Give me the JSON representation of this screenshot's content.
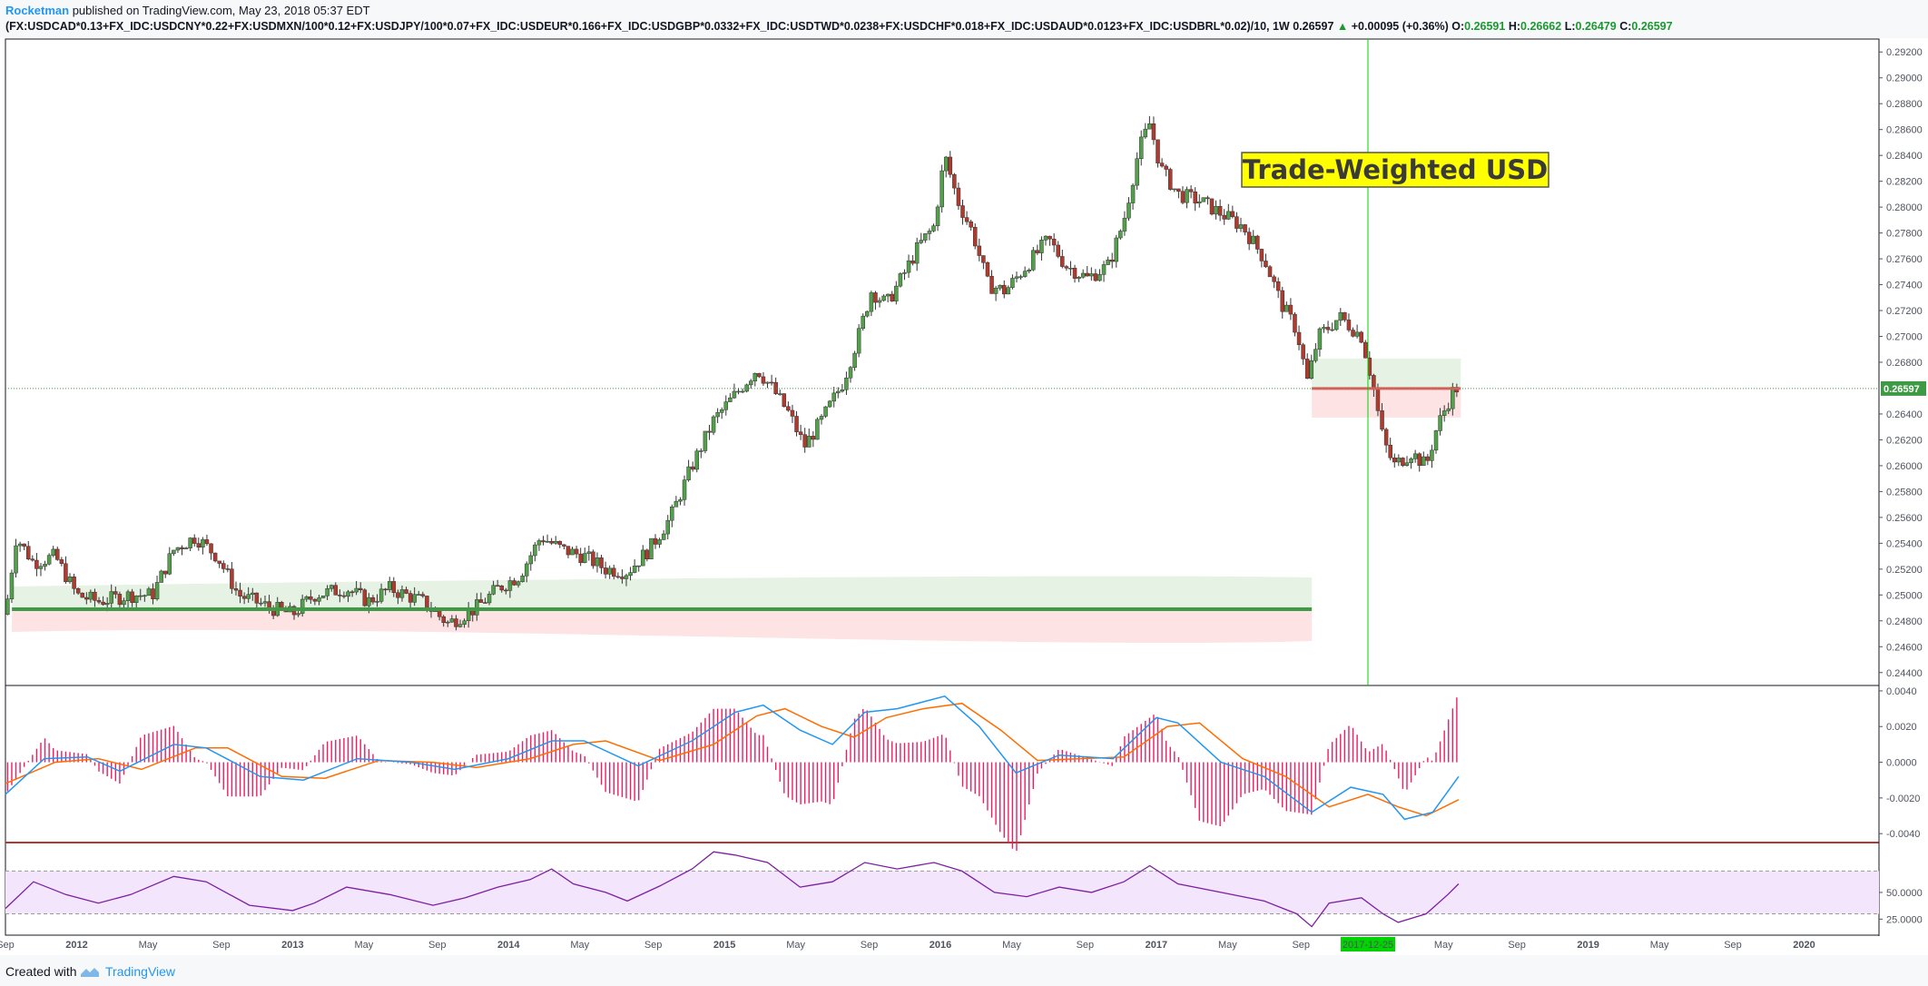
{
  "header": {
    "author": "Rocketman",
    "published": " published on TradingView.com, May 23, 2018 05:37 EDT",
    "symbol": "(FX:USDCAD*0.13+FX_IDC:USDCNY*0.22+FX:USDMXN/100*0.12+FX:USDJPY/100*0.07+FX_IDC:USDEUR*0.166+FX_IDC:USDGBP*0.0332+FX_IDC:USDTWD*0.0238+FX:USDCHF*0.018+FX_IDC:USDAUD*0.0123+FX_IDC:USDBRL*0.02)/10, 1W",
    "last": "0.26597",
    "change_arrow": "▲",
    "change": "+0.00095 (+0.36%)",
    "o_label": "O:",
    "o_value": "0.26591",
    "h_label": "H:",
    "h_value": "0.26662",
    "l_label": "L:",
    "l_value": "0.26479",
    "c_label": "C:",
    "c_value": "0.26597"
  },
  "footer": {
    "created_with": "Created with",
    "brand": "TradingView"
  },
  "colors": {
    "up": "#53a04b",
    "down": "#b03a2e",
    "green_line": "#3f9a46",
    "red_line": "#e15c5c",
    "macd": "#2196f3",
    "signal": "#ff6d00",
    "hist": "#e91e63",
    "rsi": "#7b1fa2",
    "rsi_band": "#f3e5fb",
    "title_bg": "#ffff00",
    "cursor": "#00d400"
  },
  "chart_data": [
    {
      "type": "candlestick",
      "title": "Trade-Weighted USD",
      "timeframe": "1W",
      "ylim": [
        0.243,
        0.293
      ],
      "y_ticks": [
        "0.24400",
        "0.24600",
        "0.24800",
        "0.25000",
        "0.25200",
        "0.25400",
        "0.25600",
        "0.25800",
        "0.26000",
        "0.26200",
        "0.26400",
        "0.26800",
        "0.27000",
        "0.27200",
        "0.27400",
        "0.27600",
        "0.27800",
        "0.28000",
        "0.28200",
        "0.28400",
        "0.28600",
        "0.28800",
        "0.29000",
        "0.29200"
      ],
      "last_price_label": "0.26597",
      "x_labels": [
        "Sep",
        "2012",
        "May",
        "Sep",
        "2013",
        "May",
        "Sep",
        "2014",
        "May",
        "Sep",
        "2015",
        "May",
        "Sep",
        "2016",
        "May",
        "Sep",
        "2017",
        "May",
        "Sep",
        "2017-12-25",
        "May",
        "Sep",
        "2019",
        "May",
        "Sep",
        "2020"
      ],
      "x_label_dates": [
        2011.67,
        2012.0,
        2012.33,
        2012.67,
        2013.0,
        2013.33,
        2013.67,
        2014.0,
        2014.33,
        2014.67,
        2015.0,
        2015.33,
        2015.67,
        2016.0,
        2016.33,
        2016.67,
        2017.0,
        2017.33,
        2017.67,
        2017.98,
        2018.33,
        2018.67,
        2019.0,
        2019.33,
        2019.67,
        2020.0
      ],
      "xlim": [
        2011.67,
        2020.33
      ],
      "price_path": [
        [
          2011.67,
          0.2485
        ],
        [
          2011.72,
          0.2545
        ],
        [
          2011.8,
          0.2525
        ],
        [
          2011.9,
          0.253
        ],
        [
          2012.0,
          0.25
        ],
        [
          2012.1,
          0.2495
        ],
        [
          2012.25,
          0.25
        ],
        [
          2012.35,
          0.25
        ],
        [
          2012.45,
          0.2535
        ],
        [
          2012.55,
          0.2545
        ],
        [
          2012.65,
          0.253
        ],
        [
          2012.75,
          0.25
        ],
        [
          2012.9,
          0.249
        ],
        [
          2013.0,
          0.2485
        ],
        [
          2013.1,
          0.25
        ],
        [
          2013.25,
          0.2505
        ],
        [
          2013.35,
          0.2495
        ],
        [
          2013.45,
          0.2505
        ],
        [
          2013.6,
          0.2495
        ],
        [
          2013.72,
          0.2478
        ],
        [
          2013.85,
          0.249
        ],
        [
          2013.95,
          0.2505
        ],
        [
          2014.05,
          0.2515
        ],
        [
          2014.15,
          0.2545
        ],
        [
          2014.25,
          0.2535
        ],
        [
          2014.35,
          0.253
        ],
        [
          2014.45,
          0.252
        ],
        [
          2014.55,
          0.2518
        ],
        [
          2014.65,
          0.2535
        ],
        [
          2014.75,
          0.256
        ],
        [
          2014.85,
          0.26
        ],
        [
          2014.95,
          0.2635
        ],
        [
          2015.05,
          0.2655
        ],
        [
          2015.15,
          0.2675
        ],
        [
          2015.22,
          0.266
        ],
        [
          2015.3,
          0.264
        ],
        [
          2015.37,
          0.2615
        ],
        [
          2015.45,
          0.2635
        ],
        [
          2015.55,
          0.2665
        ],
        [
          2015.62,
          0.27
        ],
        [
          2015.68,
          0.2735
        ],
        [
          2015.75,
          0.2725
        ],
        [
          2015.82,
          0.2745
        ],
        [
          2015.9,
          0.277
        ],
        [
          2015.97,
          0.2785
        ],
        [
          2016.02,
          0.284
        ],
        [
          2016.08,
          0.2805
        ],
        [
          2016.15,
          0.278
        ],
        [
          2016.22,
          0.274
        ],
        [
          2016.3,
          0.2735
        ],
        [
          2016.4,
          0.2755
        ],
        [
          2016.5,
          0.2775
        ],
        [
          2016.58,
          0.2755
        ],
        [
          2016.68,
          0.2745
        ],
        [
          2016.78,
          0.2755
        ],
        [
          2016.85,
          0.279
        ],
        [
          2016.92,
          0.2845
        ],
        [
          2016.97,
          0.2865
        ],
        [
          2017.02,
          0.283
        ],
        [
          2017.1,
          0.281
        ],
        [
          2017.2,
          0.2805
        ],
        [
          2017.3,
          0.2795
        ],
        [
          2017.4,
          0.2785
        ],
        [
          2017.5,
          0.276
        ],
        [
          2017.58,
          0.2725
        ],
        [
          2017.65,
          0.2705
        ],
        [
          2017.7,
          0.2665
        ],
        [
          2017.75,
          0.27
        ],
        [
          2017.85,
          0.2715
        ],
        [
          2017.95,
          0.27
        ],
        [
          2018.0,
          0.2665
        ],
        [
          2018.05,
          0.262
        ],
        [
          2018.1,
          0.26
        ],
        [
          2018.18,
          0.261
        ],
        [
          2018.25,
          0.26
        ],
        [
          2018.3,
          0.263
        ],
        [
          2018.38,
          0.266
        ]
      ],
      "annotations": {
        "support_line_y": 0.2489,
        "support_line_x": [
          2011.7,
          2017.72
        ],
        "resistance_line_y": 0.26597,
        "resistance_line_x": [
          2017.72,
          2018.41
        ],
        "vertical_cursor_date": "2017-12-25"
      }
    },
    {
      "type": "line",
      "name": "MACD",
      "ylim": [
        -0.0045,
        0.0042
      ],
      "y_ticks": [
        "0.0040",
        "0.0020",
        "0.0000",
        "-0.0020",
        "-0.0040"
      ],
      "macd_path": [
        [
          2011.67,
          -0.0018
        ],
        [
          2011.85,
          0.0002
        ],
        [
          2012.05,
          0.0003
        ],
        [
          2012.2,
          -0.0005
        ],
        [
          2012.45,
          0.001
        ],
        [
          2012.6,
          0.0008
        ],
        [
          2012.85,
          -0.0008
        ],
        [
          2013.05,
          -0.001
        ],
        [
          2013.3,
          0.0002
        ],
        [
          2013.55,
          0.0
        ],
        [
          2013.75,
          -0.0004
        ],
        [
          2014.0,
          0.0002
        ],
        [
          2014.2,
          0.0012
        ],
        [
          2014.35,
          0.0012
        ],
        [
          2014.6,
          -0.0002
        ],
        [
          2014.85,
          0.0012
        ],
        [
          2015.05,
          0.0028
        ],
        [
          2015.18,
          0.0032
        ],
        [
          2015.35,
          0.0018
        ],
        [
          2015.5,
          0.001
        ],
        [
          2015.65,
          0.0028
        ],
        [
          2015.8,
          0.003
        ],
        [
          2016.02,
          0.0037
        ],
        [
          2016.18,
          0.002
        ],
        [
          2016.35,
          -0.0006
        ],
        [
          2016.55,
          0.0004
        ],
        [
          2016.8,
          0.0002
        ],
        [
          2017.0,
          0.0025
        ],
        [
          2017.1,
          0.0022
        ],
        [
          2017.3,
          0.0
        ],
        [
          2017.5,
          -0.0008
        ],
        [
          2017.72,
          -0.0028
        ],
        [
          2017.9,
          -0.0014
        ],
        [
          2018.05,
          -0.0018
        ],
        [
          2018.15,
          -0.0032
        ],
        [
          2018.28,
          -0.0028
        ],
        [
          2018.4,
          -0.0008
        ]
      ],
      "signal_path": [
        [
          2011.67,
          -0.0012
        ],
        [
          2011.9,
          0.0
        ],
        [
          2012.1,
          0.0002
        ],
        [
          2012.3,
          -0.0004
        ],
        [
          2012.55,
          0.0008
        ],
        [
          2012.7,
          0.0008
        ],
        [
          2012.95,
          -0.0008
        ],
        [
          2013.15,
          -0.0009
        ],
        [
          2013.4,
          0.0001
        ],
        [
          2013.65,
          0.0
        ],
        [
          2013.85,
          -0.0003
        ],
        [
          2014.1,
          0.0002
        ],
        [
          2014.3,
          0.001
        ],
        [
          2014.45,
          0.0012
        ],
        [
          2014.7,
          0.0001
        ],
        [
          2014.95,
          0.001
        ],
        [
          2015.15,
          0.0026
        ],
        [
          2015.28,
          0.003
        ],
        [
          2015.45,
          0.002
        ],
        [
          2015.6,
          0.0014
        ],
        [
          2015.75,
          0.0025
        ],
        [
          2015.92,
          0.003
        ],
        [
          2016.1,
          0.0033
        ],
        [
          2016.28,
          0.0018
        ],
        [
          2016.45,
          0.0001
        ],
        [
          2016.65,
          0.0002
        ],
        [
          2016.85,
          0.0003
        ],
        [
          2017.05,
          0.002
        ],
        [
          2017.2,
          0.0022
        ],
        [
          2017.4,
          0.0002
        ],
        [
          2017.6,
          -0.0008
        ],
        [
          2017.8,
          -0.0025
        ],
        [
          2017.98,
          -0.0018
        ],
        [
          2018.12,
          -0.0025
        ],
        [
          2018.25,
          -0.003
        ],
        [
          2018.4,
          -0.0021
        ]
      ]
    },
    {
      "type": "line",
      "name": "RSI",
      "ylim": [
        10,
        95
      ],
      "y_ticks": [
        "50.0000",
        "25.0000"
      ],
      "bands": [
        30,
        70
      ],
      "rsi_path": [
        [
          2011.67,
          35
        ],
        [
          2011.8,
          60
        ],
        [
          2011.95,
          48
        ],
        [
          2012.1,
          40
        ],
        [
          2012.25,
          48
        ],
        [
          2012.45,
          65
        ],
        [
          2012.6,
          60
        ],
        [
          2012.8,
          38
        ],
        [
          2013.0,
          33
        ],
        [
          2013.1,
          40
        ],
        [
          2013.25,
          55
        ],
        [
          2013.45,
          48
        ],
        [
          2013.65,
          38
        ],
        [
          2013.8,
          45
        ],
        [
          2013.95,
          55
        ],
        [
          2014.1,
          62
        ],
        [
          2014.2,
          72
        ],
        [
          2014.3,
          58
        ],
        [
          2014.45,
          50
        ],
        [
          2014.55,
          42
        ],
        [
          2014.7,
          56
        ],
        [
          2014.85,
          72
        ],
        [
          2014.95,
          88
        ],
        [
          2015.05,
          85
        ],
        [
          2015.2,
          78
        ],
        [
          2015.35,
          55
        ],
        [
          2015.5,
          60
        ],
        [
          2015.65,
          78
        ],
        [
          2015.8,
          72
        ],
        [
          2015.97,
          78
        ],
        [
          2016.1,
          70
        ],
        [
          2016.25,
          50
        ],
        [
          2016.4,
          46
        ],
        [
          2016.55,
          55
        ],
        [
          2016.7,
          50
        ],
        [
          2016.85,
          60
        ],
        [
          2016.97,
          75
        ],
        [
          2017.1,
          58
        ],
        [
          2017.3,
          50
        ],
        [
          2017.5,
          42
        ],
        [
          2017.65,
          30
        ],
        [
          2017.72,
          18
        ],
        [
          2017.8,
          40
        ],
        [
          2017.95,
          45
        ],
        [
          2018.05,
          30
        ],
        [
          2018.12,
          22
        ],
        [
          2018.25,
          30
        ],
        [
          2018.35,
          48
        ],
        [
          2018.4,
          58
        ]
      ]
    }
  ]
}
